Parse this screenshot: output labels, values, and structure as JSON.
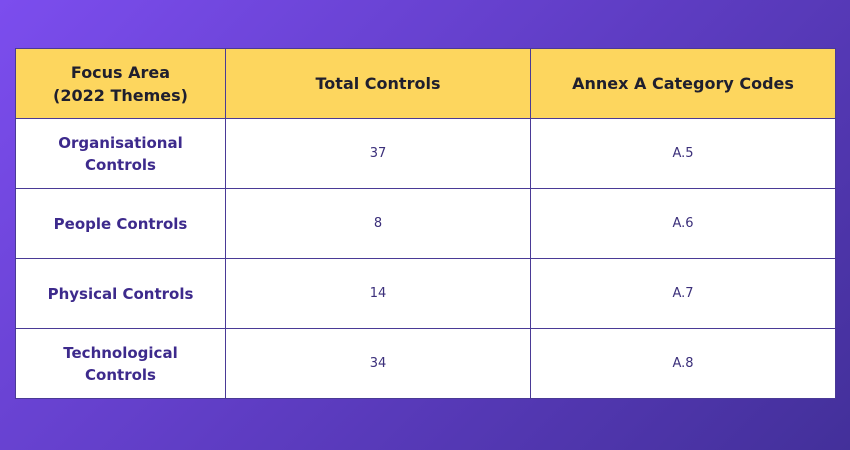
{
  "table": {
    "header": [
      "Focus Area\n(2022 Themes)",
      "Total Controls",
      "Annex A Category Codes"
    ],
    "rows": [
      [
        "Organisational\nControls",
        37,
        "A.5"
      ],
      [
        "People Controls",
        8,
        "A.6"
      ],
      [
        "Physical Controls",
        14,
        "A.7"
      ],
      [
        "Technological\nControls",
        34,
        "A.8"
      ]
    ]
  }
}
